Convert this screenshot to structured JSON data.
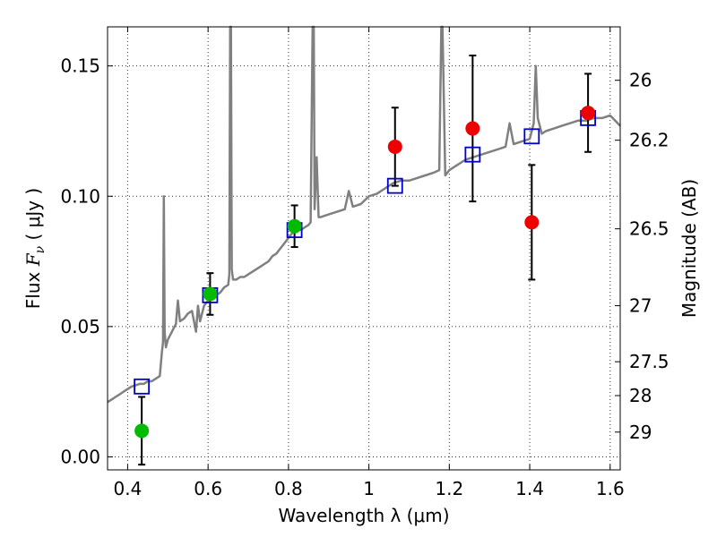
{
  "chart_data": {
    "type": "scatter",
    "xlabel": "Wavelength  λ (μm)",
    "ylabel": {
      "prefix": "Flux  ",
      "symbol": "F",
      "subscript": "ν",
      "unit": "  ( μJy )"
    },
    "y2label": "Magnitude (AB)",
    "xlim": [
      0.35,
      1.625
    ],
    "ylim": [
      -0.005,
      0.165
    ],
    "x_ticks": [
      0.4,
      0.6,
      0.8,
      1.0,
      1.2,
      1.4,
      1.6
    ],
    "x_tick_labels": [
      "0.4",
      "0.6",
      "0.8",
      "1",
      "1.2",
      "1.4",
      "1.6"
    ],
    "y_ticks": [
      0.0,
      0.05,
      0.1,
      0.15
    ],
    "y_tick_labels": [
      "0.00",
      "0.05",
      "0.10",
      "0.15"
    ],
    "y2_ticks": [
      {
        "label": "26",
        "flux": 0.1445
      },
      {
        "label": "26.2",
        "flux": 0.1215
      },
      {
        "label": "26.5",
        "flux": 0.0875
      },
      {
        "label": "27",
        "flux": 0.058
      },
      {
        "label": "27.5",
        "flux": 0.0365
      },
      {
        "label": "28",
        "flux": 0.0235
      },
      {
        "label": "29",
        "flux": 0.0095
      }
    ],
    "grid": true,
    "colors": {
      "spectrum": "#808080",
      "model": "#0000cc",
      "optical": "#00bb00",
      "nir": "#ee0000",
      "errorbar": "#000000",
      "frame": "#000000"
    },
    "spectrum": [
      [
        0.35,
        0.021
      ],
      [
        0.36,
        0.022
      ],
      [
        0.37,
        0.023
      ],
      [
        0.38,
        0.024
      ],
      [
        0.39,
        0.025
      ],
      [
        0.4,
        0.026
      ],
      [
        0.41,
        0.027
      ],
      [
        0.42,
        0.0275
      ],
      [
        0.43,
        0.028
      ],
      [
        0.44,
        0.028
      ],
      [
        0.45,
        0.029
      ],
      [
        0.46,
        0.029
      ],
      [
        0.47,
        0.03
      ],
      [
        0.48,
        0.031
      ],
      [
        0.485,
        0.04
      ],
      [
        0.488,
        0.044
      ],
      [
        0.49,
        0.1
      ],
      [
        0.492,
        0.048
      ],
      [
        0.495,
        0.042
      ],
      [
        0.5,
        0.045
      ],
      [
        0.51,
        0.048
      ],
      [
        0.52,
        0.051
      ],
      [
        0.525,
        0.06
      ],
      [
        0.53,
        0.052
      ],
      [
        0.54,
        0.053
      ],
      [
        0.55,
        0.055
      ],
      [
        0.56,
        0.056
      ],
      [
        0.57,
        0.048
      ],
      [
        0.575,
        0.058
      ],
      [
        0.58,
        0.052
      ],
      [
        0.59,
        0.058
      ],
      [
        0.6,
        0.06
      ],
      [
        0.61,
        0.061
      ],
      [
        0.62,
        0.062
      ],
      [
        0.63,
        0.063
      ],
      [
        0.64,
        0.065
      ],
      [
        0.65,
        0.066
      ],
      [
        0.653,
        0.07
      ],
      [
        0.655,
        0.165
      ],
      [
        0.657,
        0.165
      ],
      [
        0.659,
        0.072
      ],
      [
        0.662,
        0.068
      ],
      [
        0.67,
        0.068
      ],
      [
        0.68,
        0.069
      ],
      [
        0.69,
        0.069
      ],
      [
        0.7,
        0.07
      ],
      [
        0.71,
        0.071
      ],
      [
        0.72,
        0.072
      ],
      [
        0.73,
        0.073
      ],
      [
        0.74,
        0.074
      ],
      [
        0.75,
        0.075
      ],
      [
        0.76,
        0.077
      ],
      [
        0.77,
        0.078
      ],
      [
        0.78,
        0.08
      ],
      [
        0.79,
        0.082
      ],
      [
        0.8,
        0.084
      ],
      [
        0.81,
        0.086
      ],
      [
        0.82,
        0.088
      ],
      [
        0.83,
        0.087
      ],
      [
        0.84,
        0.088
      ],
      [
        0.85,
        0.089
      ],
      [
        0.855,
        0.09
      ],
      [
        0.86,
        0.165
      ],
      [
        0.863,
        0.165
      ],
      [
        0.865,
        0.095
      ],
      [
        0.87,
        0.115
      ],
      [
        0.875,
        0.092
      ],
      [
        0.88,
        0.092
      ],
      [
        0.9,
        0.093
      ],
      [
        0.92,
        0.094
      ],
      [
        0.94,
        0.095
      ],
      [
        0.95,
        0.102
      ],
      [
        0.96,
        0.096
      ],
      [
        0.98,
        0.097
      ],
      [
        1.0,
        0.1
      ],
      [
        1.02,
        0.101
      ],
      [
        1.04,
        0.103
      ],
      [
        1.06,
        0.105
      ],
      [
        1.08,
        0.106
      ],
      [
        1.1,
        0.106
      ],
      [
        1.12,
        0.107
      ],
      [
        1.14,
        0.108
      ],
      [
        1.16,
        0.109
      ],
      [
        1.175,
        0.11
      ],
      [
        1.18,
        0.165
      ],
      [
        1.183,
        0.165
      ],
      [
        1.19,
        0.108
      ],
      [
        1.2,
        0.11
      ],
      [
        1.22,
        0.112
      ],
      [
        1.24,
        0.114
      ],
      [
        1.26,
        0.115
      ],
      [
        1.28,
        0.116
      ],
      [
        1.3,
        0.117
      ],
      [
        1.32,
        0.118
      ],
      [
        1.34,
        0.119
      ],
      [
        1.35,
        0.128
      ],
      [
        1.36,
        0.12
      ],
      [
        1.38,
        0.121
      ],
      [
        1.4,
        0.122
      ],
      [
        1.41,
        0.128
      ],
      [
        1.415,
        0.15
      ],
      [
        1.42,
        0.13
      ],
      [
        1.43,
        0.124
      ],
      [
        1.44,
        0.125
      ],
      [
        1.46,
        0.126
      ],
      [
        1.48,
        0.127
      ],
      [
        1.5,
        0.128
      ],
      [
        1.52,
        0.129
      ],
      [
        1.54,
        0.129
      ],
      [
        1.56,
        0.13
      ],
      [
        1.58,
        0.13
      ],
      [
        1.6,
        0.131
      ],
      [
        1.625,
        0.127
      ]
    ],
    "model_points": [
      {
        "x": 0.435,
        "y": 0.027
      },
      {
        "x": 0.605,
        "y": 0.062
      },
      {
        "x": 0.815,
        "y": 0.087
      },
      {
        "x": 1.065,
        "y": 0.104
      },
      {
        "x": 1.258,
        "y": 0.116
      },
      {
        "x": 1.405,
        "y": 0.123
      },
      {
        "x": 1.545,
        "y": 0.13
      }
    ],
    "optical_points": [
      {
        "x": 0.435,
        "y": 0.01,
        "yerr": 0.013
      },
      {
        "x": 0.605,
        "y": 0.0625,
        "yerr": 0.008
      },
      {
        "x": 0.815,
        "y": 0.0885,
        "yerr": 0.008
      }
    ],
    "nir_points": [
      {
        "x": 1.065,
        "y": 0.119,
        "yerr": 0.015
      },
      {
        "x": 1.258,
        "y": 0.126,
        "yerr": 0.028
      },
      {
        "x": 1.405,
        "y": 0.09,
        "yerr": 0.022
      },
      {
        "x": 1.545,
        "y": 0.132,
        "yerr": 0.015
      }
    ]
  }
}
